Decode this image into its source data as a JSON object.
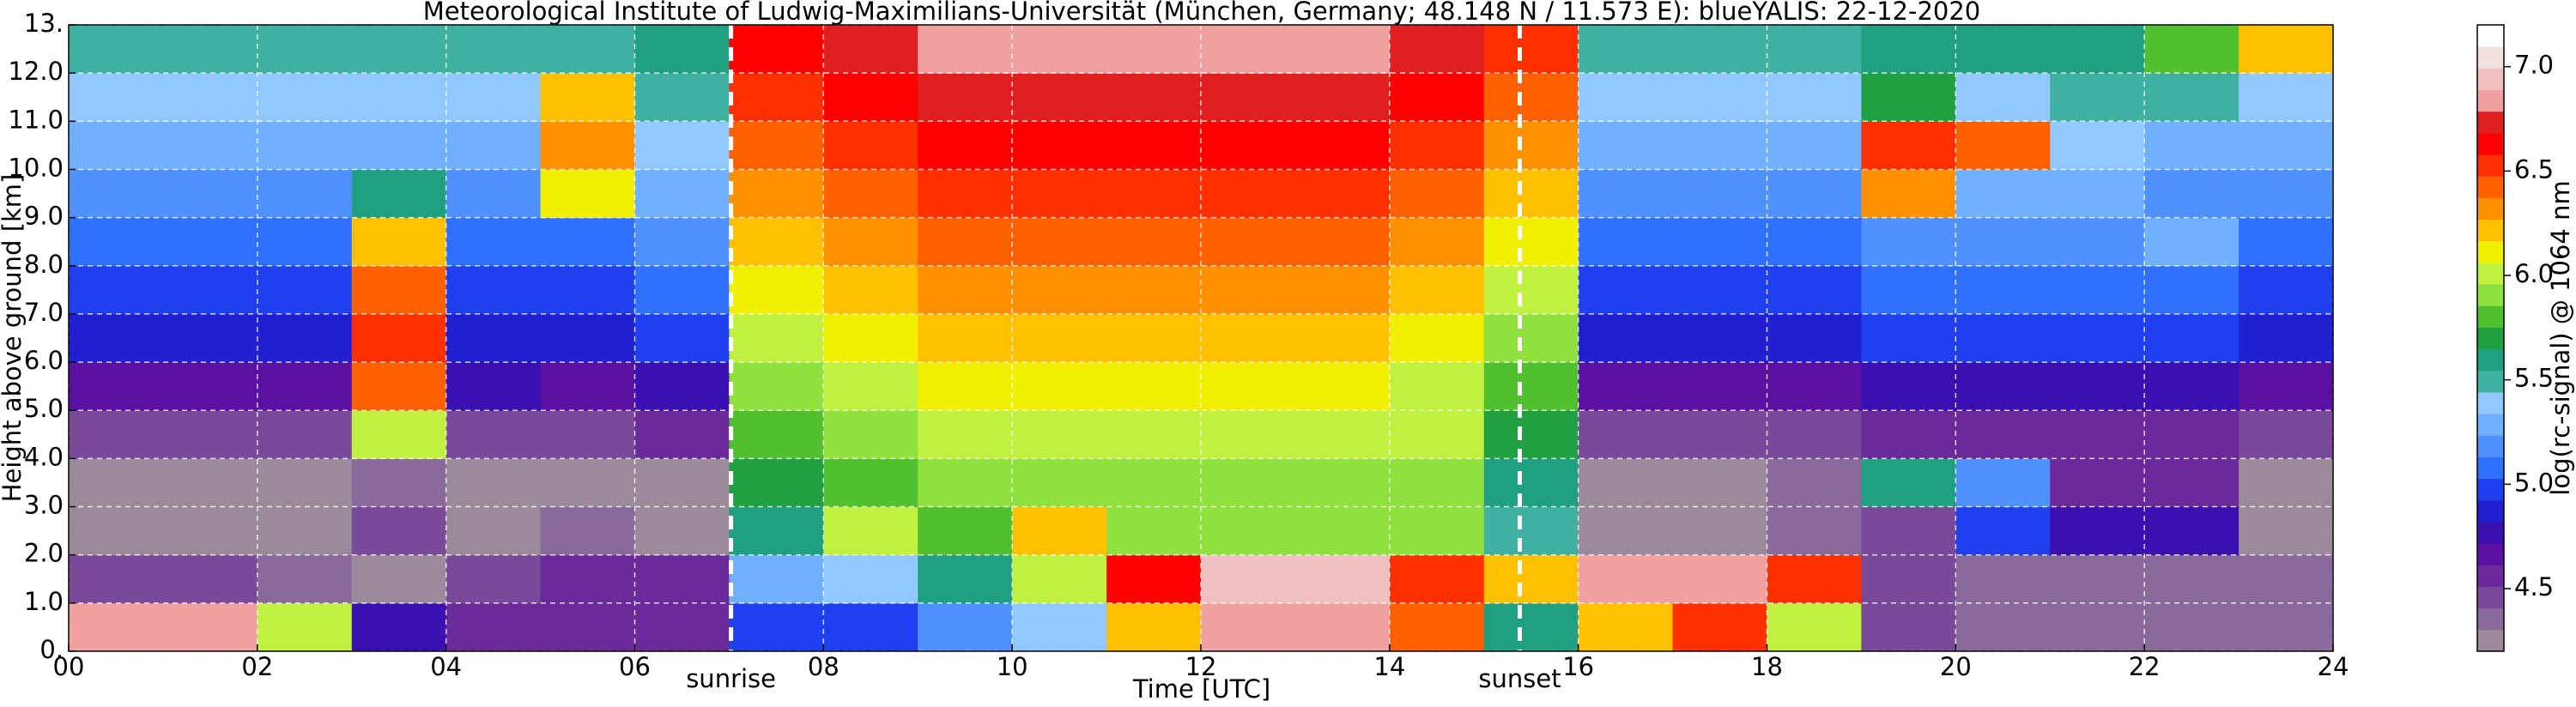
{
  "chart_data": {
    "type": "heatmap",
    "title": "Meteorological Institute of Ludwig-Maximilians-Universität (München, Germany; 48.148 N / 11.573 E):    blueYALIS: 22-12-2020",
    "x_label": "Time [UTC]",
    "y_label": "Height above ground [km]",
    "colorbar_label": "log(rc-signal) @ 1064 nm",
    "xlim": [
      0,
      24
    ],
    "ylim": [
      0,
      13
    ],
    "xticks": [
      {
        "value": 0,
        "label": "00"
      },
      {
        "value": 2,
        "label": "02"
      },
      {
        "value": 4,
        "label": "04"
      },
      {
        "value": 6,
        "label": "06"
      },
      {
        "value": 8,
        "label": "08"
      },
      10,
      12,
      14,
      16,
      18,
      20,
      22,
      24
    ],
    "yticks": [
      {
        "value": 0,
        "label": "0."
      },
      {
        "value": 1,
        "label": "1.0"
      },
      {
        "value": 2,
        "label": "2.0"
      },
      {
        "value": 3,
        "label": "3.0"
      },
      {
        "value": 4,
        "label": "4.0"
      },
      {
        "value": 5,
        "label": "5.0"
      },
      {
        "value": 6,
        "label": "6.0"
      },
      {
        "value": 7,
        "label": "7.0"
      },
      {
        "value": 8,
        "label": "8.0"
      },
      {
        "value": 9,
        "label": "9.0"
      },
      {
        "value": 10,
        "label": "10.0"
      },
      {
        "value": 11,
        "label": "11.0"
      },
      {
        "value": 12,
        "label": "12.0"
      },
      {
        "value": 13,
        "label": "13."
      }
    ],
    "grid": true,
    "clim": [
      4.2,
      7.2
    ],
    "cticks": [
      4.5,
      {
        "value": 5,
        "label": "5.0"
      },
      5.5,
      {
        "value": 6,
        "label": "6.0"
      },
      6.5,
      {
        "value": 7,
        "label": "7.0"
      }
    ],
    "colormap": [
      "#9a8a9a",
      "#8a6a9a",
      "#7a4a9a",
      "#6a2a9a",
      "#5a10a0",
      "#3a10b0",
      "#2020d0",
      "#2040f0",
      "#3070ff",
      "#5090ff",
      "#70b0ff",
      "#90c8ff",
      "#40b0a0",
      "#20a080",
      "#20a040",
      "#50c030",
      "#90e040",
      "#c0f040",
      "#f0f000",
      "#ffc000",
      "#ff9000",
      "#ff6000",
      "#ff3000",
      "#ff0000",
      "#e02020",
      "#f0a0a0",
      "#f0c0c0",
      "#f0e0e0",
      "#ffffff"
    ],
    "x": [
      0.5,
      1.5,
      2.5,
      3.5,
      4.5,
      5.5,
      6.5,
      7.5,
      8.5,
      9.5,
      10.5,
      11.5,
      12.5,
      13.5,
      14.5,
      15.5,
      16.5,
      17.5,
      18.5,
      19.5,
      20.5,
      21.5,
      22.5,
      23.5
    ],
    "y": [
      0.5,
      1.5,
      2.5,
      3.5,
      4.5,
      5.5,
      6.5,
      7.5,
      8.5,
      9.5,
      10.5,
      11.5,
      12.5
    ],
    "z": [
      [
        6.8,
        6.8,
        6.0,
        4.8,
        4.6,
        4.6,
        4.6,
        5.0,
        5.0,
        5.2,
        5.4,
        6.2,
        6.8,
        6.8,
        6.4,
        5.6,
        6.2,
        6.5,
        6.0,
        4.5,
        4.4,
        4.4,
        4.4,
        4.4
      ],
      [
        4.5,
        4.5,
        4.4,
        4.3,
        4.5,
        4.6,
        4.6,
        5.3,
        5.4,
        5.6,
        6.0,
        6.6,
        6.9,
        6.9,
        6.5,
        6.2,
        6.8,
        6.8,
        6.5,
        4.5,
        4.4,
        4.4,
        4.4,
        4.4
      ],
      [
        4.3,
        4.3,
        4.3,
        4.5,
        4.3,
        4.4,
        4.3,
        5.6,
        6.0,
        5.8,
        6.2,
        5.9,
        5.9,
        5.9,
        5.9,
        5.5,
        4.3,
        4.3,
        4.4,
        4.5,
        5.0,
        4.8,
        4.8,
        4.3
      ],
      [
        4.3,
        4.3,
        4.3,
        4.4,
        4.3,
        4.3,
        4.3,
        5.7,
        5.8,
        5.9,
        5.9,
        5.9,
        5.9,
        5.9,
        5.9,
        5.6,
        4.3,
        4.3,
        4.4,
        5.6,
        5.2,
        4.6,
        4.6,
        4.3
      ],
      [
        4.5,
        4.5,
        4.5,
        6.0,
        4.5,
        4.5,
        4.6,
        5.8,
        5.9,
        6.0,
        6.0,
        6.0,
        6.0,
        6.0,
        6.0,
        5.7,
        4.5,
        4.5,
        4.5,
        4.6,
        4.6,
        4.6,
        4.6,
        4.5
      ],
      [
        4.7,
        4.7,
        4.7,
        6.4,
        4.8,
        4.7,
        4.8,
        5.9,
        6.0,
        6.1,
        6.1,
        6.1,
        6.1,
        6.1,
        6.0,
        5.8,
        4.7,
        4.7,
        4.7,
        4.8,
        4.8,
        4.8,
        4.8,
        4.7
      ],
      [
        4.9,
        4.9,
        4.9,
        6.5,
        4.9,
        4.9,
        5.0,
        6.0,
        6.1,
        6.2,
        6.2,
        6.2,
        6.2,
        6.2,
        6.1,
        5.9,
        4.9,
        4.9,
        4.9,
        5.0,
        5.0,
        5.0,
        5.0,
        4.9
      ],
      [
        5.0,
        5.0,
        5.0,
        6.4,
        5.0,
        5.0,
        5.1,
        6.1,
        6.2,
        6.3,
        6.3,
        6.3,
        6.3,
        6.3,
        6.2,
        6.0,
        5.0,
        5.0,
        5.0,
        5.1,
        5.1,
        5.1,
        5.1,
        5.0
      ],
      [
        5.1,
        5.1,
        5.1,
        6.2,
        5.1,
        5.1,
        5.2,
        6.2,
        6.3,
        6.4,
        6.4,
        6.4,
        6.4,
        6.4,
        6.3,
        6.1,
        5.1,
        5.1,
        5.1,
        5.2,
        5.2,
        5.2,
        5.3,
        5.1
      ],
      [
        5.2,
        5.2,
        5.2,
        5.6,
        5.2,
        6.1,
        5.3,
        6.3,
        6.4,
        6.5,
        6.5,
        6.5,
        6.5,
        6.5,
        6.4,
        6.2,
        5.2,
        5.2,
        5.2,
        6.3,
        5.3,
        5.3,
        5.2,
        5.2
      ],
      [
        5.3,
        5.3,
        5.3,
        5.3,
        5.3,
        6.3,
        5.4,
        6.4,
        6.5,
        6.6,
        6.6,
        6.6,
        6.6,
        6.6,
        6.5,
        6.3,
        5.3,
        5.3,
        5.3,
        6.5,
        6.4,
        5.4,
        5.3,
        5.3
      ],
      [
        5.4,
        5.4,
        5.4,
        5.4,
        5.4,
        6.2,
        5.5,
        6.5,
        6.6,
        6.7,
        6.7,
        6.7,
        6.7,
        6.7,
        6.6,
        6.4,
        5.4,
        5.4,
        5.4,
        5.7,
        5.4,
        5.5,
        5.5,
        5.4
      ],
      [
        5.5,
        5.5,
        5.5,
        5.5,
        5.5,
        5.5,
        5.6,
        6.6,
        6.7,
        6.8,
        6.8,
        6.8,
        6.8,
        6.8,
        6.7,
        6.5,
        5.5,
        5.5,
        5.5,
        5.6,
        5.6,
        5.6,
        5.8,
        6.2
      ]
    ],
    "annotations": [
      {
        "text": "sunrise",
        "x": 7.02
      },
      {
        "text": "sunset",
        "x": 15.38
      }
    ]
  }
}
